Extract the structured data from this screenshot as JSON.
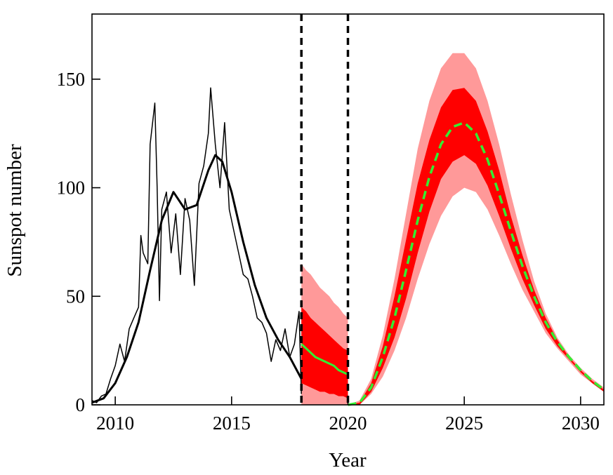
{
  "chart_data": {
    "type": "line",
    "title": "",
    "xlabel": "Year",
    "ylabel": "Sunspot number",
    "xlim": [
      2009,
      2031
    ],
    "ylim": [
      0,
      180
    ],
    "xticks": [
      2010,
      2015,
      2020,
      2025,
      2030
    ],
    "yticks": [
      0,
      50,
      100,
      150
    ],
    "grid": false,
    "vertical_lines": [
      2018.0,
      2020.0
    ],
    "colors": {
      "observed": "#000000",
      "model": "#33ee33",
      "inner_band": "#ff0000",
      "outer_band": "#ff9999"
    },
    "series": [
      {
        "kind": "monthly",
        "x": [
          2009.0,
          2009.2,
          2009.4,
          2009.6,
          2009.8,
          2010.0,
          2010.2,
          2010.4,
          2010.6,
          2010.8,
          2011.0,
          2011.1,
          2011.2,
          2011.4,
          2011.5,
          2011.7,
          2011.8,
          2011.9,
          2012.0,
          2012.2,
          2012.4,
          2012.6,
          2012.8,
          2013.0,
          2013.2,
          2013.4,
          2013.6,
          2013.8,
          2014.0,
          2014.1,
          2014.3,
          2014.5,
          2014.7,
          2014.9,
          2015.1,
          2015.3,
          2015.5,
          2015.7,
          2015.9,
          2016.1,
          2016.3,
          2016.5,
          2016.7,
          2016.9,
          2017.1,
          2017.3,
          2017.5,
          2017.7,
          2017.9,
          2018.0
        ],
        "y": [
          2,
          1,
          4,
          5,
          12,
          18,
          28,
          20,
          35,
          40,
          45,
          78,
          70,
          65,
          120,
          139,
          100,
          48,
          90,
          98,
          70,
          88,
          60,
          95,
          85,
          55,
          102,
          110,
          125,
          146,
          120,
          100,
          130,
          90,
          80,
          70,
          60,
          58,
          50,
          40,
          38,
          33,
          20,
          30,
          25,
          35,
          22,
          28,
          43,
          5
        ]
      },
      {
        "kind": "smoothed",
        "x": [
          2009.0,
          2009.5,
          2010.0,
          2010.5,
          2011.0,
          2011.5,
          2012.0,
          2012.5,
          2013.0,
          2013.5,
          2014.0,
          2014.3,
          2014.6,
          2015.0,
          2015.5,
          2016.0,
          2016.5,
          2017.0,
          2017.5,
          2018.0
        ],
        "y": [
          1,
          3,
          10,
          22,
          38,
          62,
          85,
          98,
          90,
          92,
          108,
          115,
          112,
          98,
          75,
          55,
          40,
          30,
          22,
          12
        ]
      },
      {
        "kind": "forecast_2018_2020",
        "x": [
          2018.0,
          2018.2,
          2018.4,
          2018.6,
          2018.8,
          2019.0,
          2019.2,
          2019.4,
          2019.6,
          2019.8,
          2020.0
        ],
        "y": [
          28,
          26,
          24,
          22,
          21,
          20,
          19,
          18,
          16,
          15,
          14
        ],
        "outer_band_upper": [
          65,
          62,
          60,
          57,
          54,
          52,
          50,
          47,
          45,
          42,
          40
        ],
        "outer_band_lower": [
          0,
          0,
          0,
          0,
          0,
          0,
          0,
          0,
          0,
          0,
          0
        ],
        "inner_band_upper": [
          45,
          43,
          40,
          38,
          36,
          34,
          32,
          30,
          28,
          26,
          25
        ],
        "inner_band_lower": [
          10,
          9,
          8,
          7,
          6,
          6,
          5,
          5,
          4,
          4,
          3
        ]
      },
      {
        "kind": "forecast_cycle25",
        "x": [
          2020.0,
          2020.5,
          2021.0,
          2021.5,
          2022.0,
          2022.5,
          2023.0,
          2023.5,
          2024.0,
          2024.5,
          2025.0,
          2025.5,
          2026.0,
          2026.5,
          2027.0,
          2027.5,
          2028.0,
          2028.5,
          2029.0,
          2029.5,
          2030.0,
          2030.5,
          2031.0
        ],
        "y": [
          0,
          1,
          8,
          22,
          40,
          62,
          85,
          105,
          120,
          128,
          130,
          125,
          113,
          97,
          80,
          64,
          50,
          38,
          29,
          22,
          16,
          11,
          7
        ],
        "outer_band_upper": [
          0,
          2,
          12,
          32,
          58,
          88,
          118,
          140,
          155,
          162,
          162,
          155,
          140,
          120,
          97,
          76,
          57,
          42,
          31,
          23,
          17,
          12,
          8
        ],
        "outer_band_lower": [
          0,
          0,
          5,
          13,
          25,
          40,
          58,
          74,
          87,
          96,
          100,
          98,
          90,
          78,
          65,
          53,
          43,
          33,
          26,
          20,
          14,
          10,
          6
        ],
        "inner_band_upper": [
          0,
          1,
          10,
          27,
          50,
          76,
          102,
          122,
          137,
          145,
          146,
          140,
          126,
          108,
          87,
          69,
          53,
          40,
          30,
          22,
          16,
          11,
          7
        ],
        "inner_band_lower": [
          0,
          0,
          6,
          17,
          31,
          49,
          70,
          89,
          104,
          112,
          115,
          111,
          101,
          87,
          72,
          58,
          46,
          35,
          27,
          21,
          15,
          10,
          6
        ]
      }
    ]
  }
}
